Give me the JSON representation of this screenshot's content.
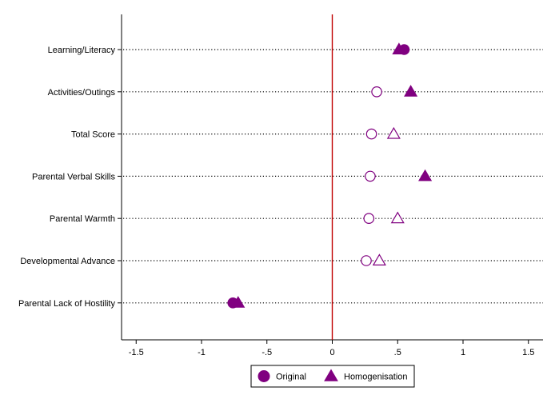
{
  "chart_data": {
    "type": "scatter",
    "orientation": "horizontal-dot-plot",
    "categories": [
      "Learning/Literacy",
      "Activities/Outings",
      "Total Score",
      "Parental Verbal Skills",
      "Parental Warmth",
      "Developmental Advance",
      "Parental Lack of Hostility"
    ],
    "series": [
      {
        "name": "Original",
        "marker": "circle",
        "values": [
          0.55,
          0.34,
          0.3,
          0.29,
          0.28,
          0.26,
          -0.76
        ],
        "filled": [
          true,
          false,
          false,
          false,
          false,
          false,
          true
        ]
      },
      {
        "name": "Homogenisation",
        "marker": "triangle",
        "values": [
          0.51,
          0.6,
          0.47,
          0.71,
          0.5,
          0.36,
          -0.72
        ],
        "filled": [
          true,
          true,
          false,
          true,
          false,
          false,
          true
        ]
      }
    ],
    "xlim": [
      -1.6,
      1.6
    ],
    "xticks": [
      -1.5,
      -1,
      -0.5,
      0,
      0.5,
      1,
      1.5
    ],
    "xtick_labels": [
      "-1.5",
      "-1",
      "-.5",
      "0",
      ".5",
      "1",
      "1.5"
    ],
    "reference_line_x": 0,
    "title": "",
    "xlabel": "",
    "ylabel": "",
    "legend_position": "bottom-center",
    "colors": {
      "marker": "#800080",
      "reference_line": "#c00000",
      "gridline": "#000000"
    }
  }
}
